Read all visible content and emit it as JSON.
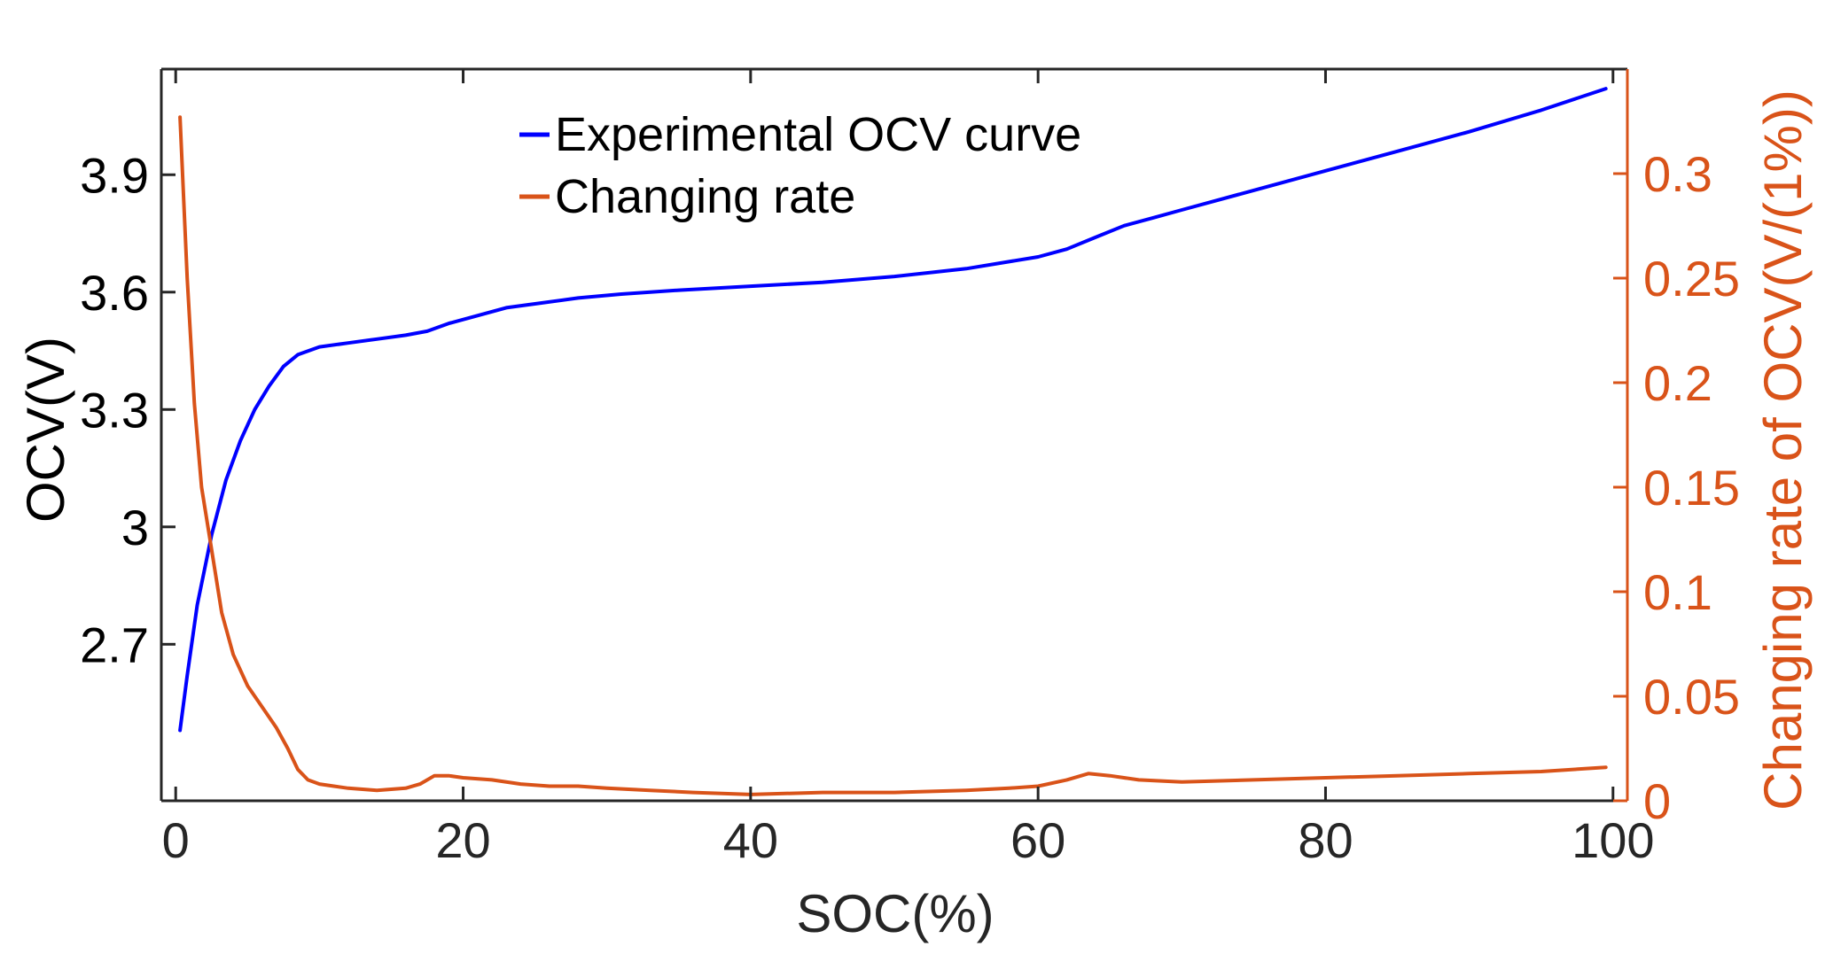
{
  "chart_data": {
    "type": "line",
    "title": "",
    "xlabel": "SOC(%)",
    "ylabel_left": "OCV(V)",
    "ylabel_right": "Changing rate of OCV(V/(1%))",
    "xlim": [
      -1,
      101
    ],
    "ylim_left": [
      2.3,
      4.17
    ],
    "ylim_right": [
      0,
      0.35
    ],
    "x_ticks": [
      0,
      20,
      40,
      60,
      80,
      100
    ],
    "x_tick_labels": [
      "0",
      "20",
      "40",
      "60",
      "80",
      "100"
    ],
    "y_left_ticks": [
      2.7,
      3.0,
      3.3,
      3.6,
      3.9
    ],
    "y_left_tick_labels": [
      "2.7",
      "3",
      "3.3",
      "3.6",
      "3.9"
    ],
    "y_right_ticks": [
      0,
      0.05,
      0.1,
      0.15,
      0.2,
      0.25,
      0.3
    ],
    "y_right_tick_labels": [
      "0",
      "0.05",
      "0.1",
      "0.15",
      "0.2",
      "0.25",
      "0.3"
    ],
    "grid": false,
    "legend_position": "top-center",
    "series": [
      {
        "name": "Experimental OCV curve",
        "axis": "left",
        "color": "#0000ff",
        "x": [
          0.3,
          0.8,
          1.5,
          2.5,
          3.5,
          4.5,
          5.5,
          6.5,
          7.5,
          8.5,
          10,
          12,
          14,
          16,
          17.5,
          19,
          21,
          23,
          25,
          28,
          31,
          35,
          40,
          45,
          50,
          55,
          60,
          62,
          64,
          66,
          68,
          70,
          75,
          80,
          85,
          90,
          95,
          99.5
        ],
        "values": [
          2.48,
          2.62,
          2.8,
          2.98,
          3.12,
          3.22,
          3.3,
          3.36,
          3.41,
          3.44,
          3.46,
          3.47,
          3.48,
          3.49,
          3.5,
          3.52,
          3.54,
          3.56,
          3.57,
          3.585,
          3.595,
          3.605,
          3.615,
          3.625,
          3.64,
          3.66,
          3.69,
          3.71,
          3.74,
          3.77,
          3.79,
          3.81,
          3.86,
          3.91,
          3.96,
          4.01,
          4.065,
          4.12
        ]
      },
      {
        "name": "Changing rate",
        "axis": "right",
        "color": "#d95319",
        "x": [
          0.3,
          0.8,
          1.3,
          1.8,
          2.5,
          3.2,
          4,
          5,
          6,
          7,
          7.8,
          8.5,
          9.2,
          10,
          11,
          12,
          14,
          16,
          17,
          18,
          19,
          20,
          22,
          24,
          26,
          28,
          30,
          33,
          36,
          40,
          45,
          50,
          55,
          58,
          60,
          62,
          63.5,
          65,
          67,
          70,
          75,
          80,
          85,
          90,
          95,
          99.5
        ],
        "values": [
          0.327,
          0.25,
          0.19,
          0.15,
          0.12,
          0.09,
          0.07,
          0.055,
          0.045,
          0.035,
          0.025,
          0.015,
          0.01,
          0.008,
          0.007,
          0.006,
          0.005,
          0.006,
          0.008,
          0.012,
          0.012,
          0.011,
          0.01,
          0.008,
          0.007,
          0.007,
          0.006,
          0.005,
          0.004,
          0.003,
          0.004,
          0.004,
          0.005,
          0.006,
          0.007,
          0.01,
          0.013,
          0.012,
          0.01,
          0.009,
          0.01,
          0.011,
          0.012,
          0.013,
          0.014,
          0.016
        ]
      }
    ]
  }
}
